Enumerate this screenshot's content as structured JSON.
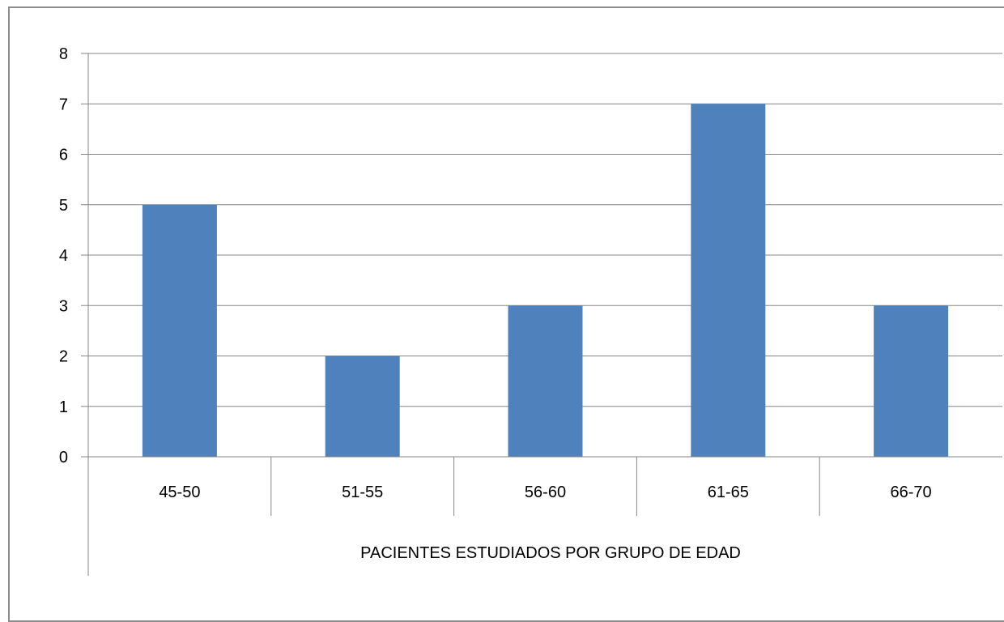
{
  "chart_data": {
    "type": "bar",
    "categories": [
      "45-50",
      "51-55",
      "56-60",
      "61-65",
      "66-70"
    ],
    "values": [
      5,
      2,
      3,
      7,
      3
    ],
    "xlabel": "PACIENTES ESTUDIADOS POR GRUPO DE EDAD",
    "ylabel": "",
    "ylim": [
      0,
      8
    ],
    "yticks": [
      "0",
      "1",
      "2",
      "3",
      "4",
      "5",
      "6",
      "7",
      "8"
    ],
    "grid": true,
    "legend": "none",
    "colors": {
      "bar": "#4f81bd",
      "grid": "#868686",
      "axis": "#868686"
    }
  }
}
